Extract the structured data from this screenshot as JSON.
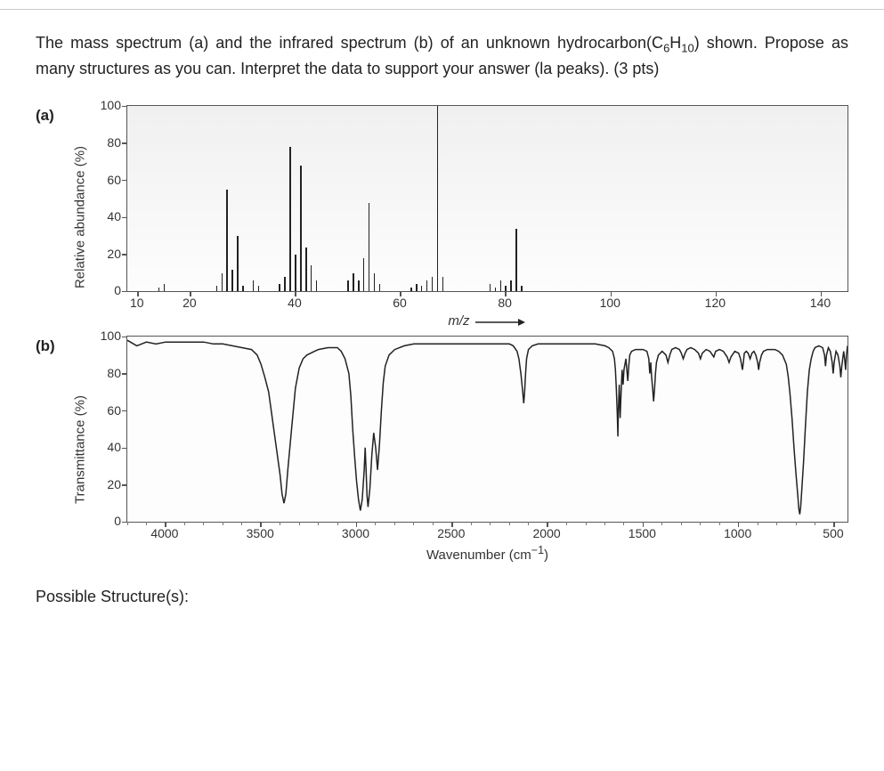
{
  "question": {
    "line1_pre": "The mass spectrum (a) and the infrared spectrum (b) of an unknown hydrocarbon(C",
    "line1_sub1": "6",
    "line1_mid": "H",
    "line1_sub2": "10",
    "line1_post": ")",
    "line2": "shown. Propose as many structures as you can. Interpret the data to support your answer (la",
    "line3": "peaks). (3 pts)"
  },
  "panel_a": {
    "label": "(a)",
    "y_title": "Relative abundance (%)",
    "y_ticks": [
      0,
      20,
      40,
      60,
      80,
      100
    ],
    "y_min": 0,
    "y_max": 100,
    "x_title": "m/z",
    "x_ticks": [
      10,
      20,
      40,
      60,
      80,
      100,
      120,
      140
    ],
    "x_min": 8,
    "x_max": 145,
    "bars": [
      {
        "mz": 14,
        "h": 2
      },
      {
        "mz": 15,
        "h": 4
      },
      {
        "mz": 25,
        "h": 3
      },
      {
        "mz": 26,
        "h": 10
      },
      {
        "mz": 27,
        "h": 55
      },
      {
        "mz": 28,
        "h": 12
      },
      {
        "mz": 29,
        "h": 30
      },
      {
        "mz": 30,
        "h": 3
      },
      {
        "mz": 32,
        "h": 6
      },
      {
        "mz": 33,
        "h": 3
      },
      {
        "mz": 37,
        "h": 4
      },
      {
        "mz": 38,
        "h": 8
      },
      {
        "mz": 39,
        "h": 78
      },
      {
        "mz": 40,
        "h": 20
      },
      {
        "mz": 41,
        "h": 68
      },
      {
        "mz": 42,
        "h": 24
      },
      {
        "mz": 43,
        "h": 14
      },
      {
        "mz": 44,
        "h": 6
      },
      {
        "mz": 50,
        "h": 6
      },
      {
        "mz": 51,
        "h": 10
      },
      {
        "mz": 52,
        "h": 6
      },
      {
        "mz": 53,
        "h": 18
      },
      {
        "mz": 54,
        "h": 48
      },
      {
        "mz": 55,
        "h": 10
      },
      {
        "mz": 56,
        "h": 4
      },
      {
        "mz": 62,
        "h": 2
      },
      {
        "mz": 63,
        "h": 4
      },
      {
        "mz": 64,
        "h": 3
      },
      {
        "mz": 65,
        "h": 6
      },
      {
        "mz": 66,
        "h": 8
      },
      {
        "mz": 67,
        "h": 100
      },
      {
        "mz": 68,
        "h": 8
      },
      {
        "mz": 77,
        "h": 4
      },
      {
        "mz": 78,
        "h": 2
      },
      {
        "mz": 79,
        "h": 6
      },
      {
        "mz": 80,
        "h": 3
      },
      {
        "mz": 81,
        "h": 6
      },
      {
        "mz": 82,
        "h": 34
      },
      {
        "mz": 83,
        "h": 3
      }
    ],
    "bar_color": "#222222"
  },
  "panel_b": {
    "label": "(b)",
    "y_title": "Transmittance (%)",
    "y_ticks": [
      0,
      20,
      40,
      60,
      80,
      100
    ],
    "y_min": 0,
    "y_max": 100,
    "x_title_pre": "Wavenumber (cm",
    "x_title_sup": "−1",
    "x_title_post": ")",
    "x_ticks": [
      4000,
      3500,
      3000,
      2500,
      2000,
      1500,
      1000,
      500
    ],
    "x_min": 4200,
    "x_max": 430,
    "x_minor_step": 100,
    "trace_color": "#222222",
    "trace": [
      [
        4200,
        98
      ],
      [
        4150,
        95
      ],
      [
        4100,
        97
      ],
      [
        4050,
        96
      ],
      [
        4000,
        97
      ],
      [
        3950,
        97
      ],
      [
        3900,
        97
      ],
      [
        3850,
        97
      ],
      [
        3800,
        97
      ],
      [
        3750,
        96
      ],
      [
        3700,
        96
      ],
      [
        3650,
        95
      ],
      [
        3600,
        94
      ],
      [
        3550,
        93
      ],
      [
        3520,
        90
      ],
      [
        3500,
        85
      ],
      [
        3480,
        78
      ],
      [
        3460,
        70
      ],
      [
        3440,
        55
      ],
      [
        3420,
        40
      ],
      [
        3400,
        25
      ],
      [
        3390,
        15
      ],
      [
        3380,
        10
      ],
      [
        3370,
        15
      ],
      [
        3360,
        28
      ],
      [
        3340,
        50
      ],
      [
        3320,
        72
      ],
      [
        3300,
        83
      ],
      [
        3280,
        88
      ],
      [
        3260,
        90
      ],
      [
        3240,
        91
      ],
      [
        3220,
        92
      ],
      [
        3200,
        93
      ],
      [
        3150,
        94
      ],
      [
        3100,
        94
      ],
      [
        3080,
        92
      ],
      [
        3060,
        88
      ],
      [
        3040,
        80
      ],
      [
        3030,
        68
      ],
      [
        3020,
        50
      ],
      [
        3010,
        35
      ],
      [
        3000,
        22
      ],
      [
        2990,
        12
      ],
      [
        2980,
        6
      ],
      [
        2970,
        12
      ],
      [
        2960,
        28
      ],
      [
        2955,
        40
      ],
      [
        2950,
        28
      ],
      [
        2945,
        14
      ],
      [
        2940,
        8
      ],
      [
        2930,
        18
      ],
      [
        2920,
        36
      ],
      [
        2910,
        48
      ],
      [
        2900,
        40
      ],
      [
        2890,
        28
      ],
      [
        2880,
        42
      ],
      [
        2870,
        60
      ],
      [
        2860,
        75
      ],
      [
        2850,
        84
      ],
      [
        2830,
        90
      ],
      [
        2800,
        93
      ],
      [
        2750,
        95
      ],
      [
        2700,
        96
      ],
      [
        2650,
        96
      ],
      [
        2600,
        96
      ],
      [
        2550,
        96
      ],
      [
        2500,
        96
      ],
      [
        2450,
        96
      ],
      [
        2400,
        96
      ],
      [
        2350,
        96
      ],
      [
        2300,
        96
      ],
      [
        2250,
        96
      ],
      [
        2200,
        96
      ],
      [
        2180,
        95
      ],
      [
        2160,
        92
      ],
      [
        2150,
        88
      ],
      [
        2140,
        80
      ],
      [
        2130,
        70
      ],
      [
        2125,
        64
      ],
      [
        2120,
        70
      ],
      [
        2115,
        80
      ],
      [
        2110,
        88
      ],
      [
        2100,
        93
      ],
      [
        2080,
        95
      ],
      [
        2050,
        96
      ],
      [
        2000,
        96
      ],
      [
        1950,
        96
      ],
      [
        1900,
        96
      ],
      [
        1850,
        96
      ],
      [
        1800,
        96
      ],
      [
        1750,
        96
      ],
      [
        1700,
        95
      ],
      [
        1680,
        94
      ],
      [
        1660,
        92
      ],
      [
        1650,
        88
      ],
      [
        1645,
        82
      ],
      [
        1640,
        72
      ],
      [
        1635,
        58
      ],
      [
        1632,
        46
      ],
      [
        1630,
        58
      ],
      [
        1625,
        74
      ],
      [
        1620,
        56
      ],
      [
        1615,
        70
      ],
      [
        1610,
        82
      ],
      [
        1605,
        74
      ],
      [
        1600,
        82
      ],
      [
        1590,
        88
      ],
      [
        1580,
        76
      ],
      [
        1575,
        84
      ],
      [
        1570,
        90
      ],
      [
        1560,
        92
      ],
      [
        1540,
        93
      ],
      [
        1520,
        93
      ],
      [
        1500,
        93
      ],
      [
        1480,
        92
      ],
      [
        1470,
        88
      ],
      [
        1465,
        80
      ],
      [
        1460,
        86
      ],
      [
        1455,
        78
      ],
      [
        1450,
        72
      ],
      [
        1445,
        65
      ],
      [
        1440,
        72
      ],
      [
        1435,
        80
      ],
      [
        1430,
        86
      ],
      [
        1420,
        90
      ],
      [
        1400,
        92
      ],
      [
        1380,
        90
      ],
      [
        1370,
        86
      ],
      [
        1360,
        90
      ],
      [
        1350,
        93
      ],
      [
        1330,
        94
      ],
      [
        1310,
        93
      ],
      [
        1300,
        91
      ],
      [
        1290,
        88
      ],
      [
        1280,
        91
      ],
      [
        1270,
        93
      ],
      [
        1250,
        94
      ],
      [
        1230,
        93
      ],
      [
        1210,
        91
      ],
      [
        1200,
        88
      ],
      [
        1190,
        91
      ],
      [
        1170,
        93
      ],
      [
        1150,
        92
      ],
      [
        1130,
        89
      ],
      [
        1120,
        92
      ],
      [
        1100,
        93
      ],
      [
        1080,
        92
      ],
      [
        1060,
        89
      ],
      [
        1050,
        86
      ],
      [
        1040,
        89
      ],
      [
        1020,
        92
      ],
      [
        1000,
        91
      ],
      [
        990,
        88
      ],
      [
        980,
        82
      ],
      [
        975,
        86
      ],
      [
        970,
        91
      ],
      [
        960,
        92
      ],
      [
        950,
        91
      ],
      [
        940,
        88
      ],
      [
        930,
        91
      ],
      [
        920,
        92
      ],
      [
        910,
        90
      ],
      [
        900,
        86
      ],
      [
        895,
        82
      ],
      [
        890,
        86
      ],
      [
        880,
        90
      ],
      [
        870,
        92
      ],
      [
        850,
        93
      ],
      [
        830,
        93
      ],
      [
        810,
        93
      ],
      [
        790,
        92
      ],
      [
        770,
        90
      ],
      [
        750,
        85
      ],
      [
        740,
        78
      ],
      [
        730,
        68
      ],
      [
        720,
        55
      ],
      [
        710,
        40
      ],
      [
        700,
        26
      ],
      [
        690,
        14
      ],
      [
        685,
        7
      ],
      [
        680,
        4
      ],
      [
        675,
        8
      ],
      [
        670,
        16
      ],
      [
        660,
        32
      ],
      [
        650,
        52
      ],
      [
        640,
        70
      ],
      [
        630,
        82
      ],
      [
        620,
        88
      ],
      [
        610,
        92
      ],
      [
        600,
        94
      ],
      [
        580,
        95
      ],
      [
        560,
        94
      ],
      [
        550,
        90
      ],
      [
        545,
        84
      ],
      [
        540,
        90
      ],
      [
        530,
        94
      ],
      [
        520,
        92
      ],
      [
        510,
        86
      ],
      [
        505,
        80
      ],
      [
        500,
        86
      ],
      [
        490,
        92
      ],
      [
        480,
        90
      ],
      [
        470,
        84
      ],
      [
        465,
        78
      ],
      [
        460,
        84
      ],
      [
        450,
        92
      ],
      [
        445,
        88
      ],
      [
        440,
        82
      ],
      [
        435,
        90
      ],
      [
        430,
        95
      ]
    ]
  },
  "possible_label": "Possible Structure(s):"
}
